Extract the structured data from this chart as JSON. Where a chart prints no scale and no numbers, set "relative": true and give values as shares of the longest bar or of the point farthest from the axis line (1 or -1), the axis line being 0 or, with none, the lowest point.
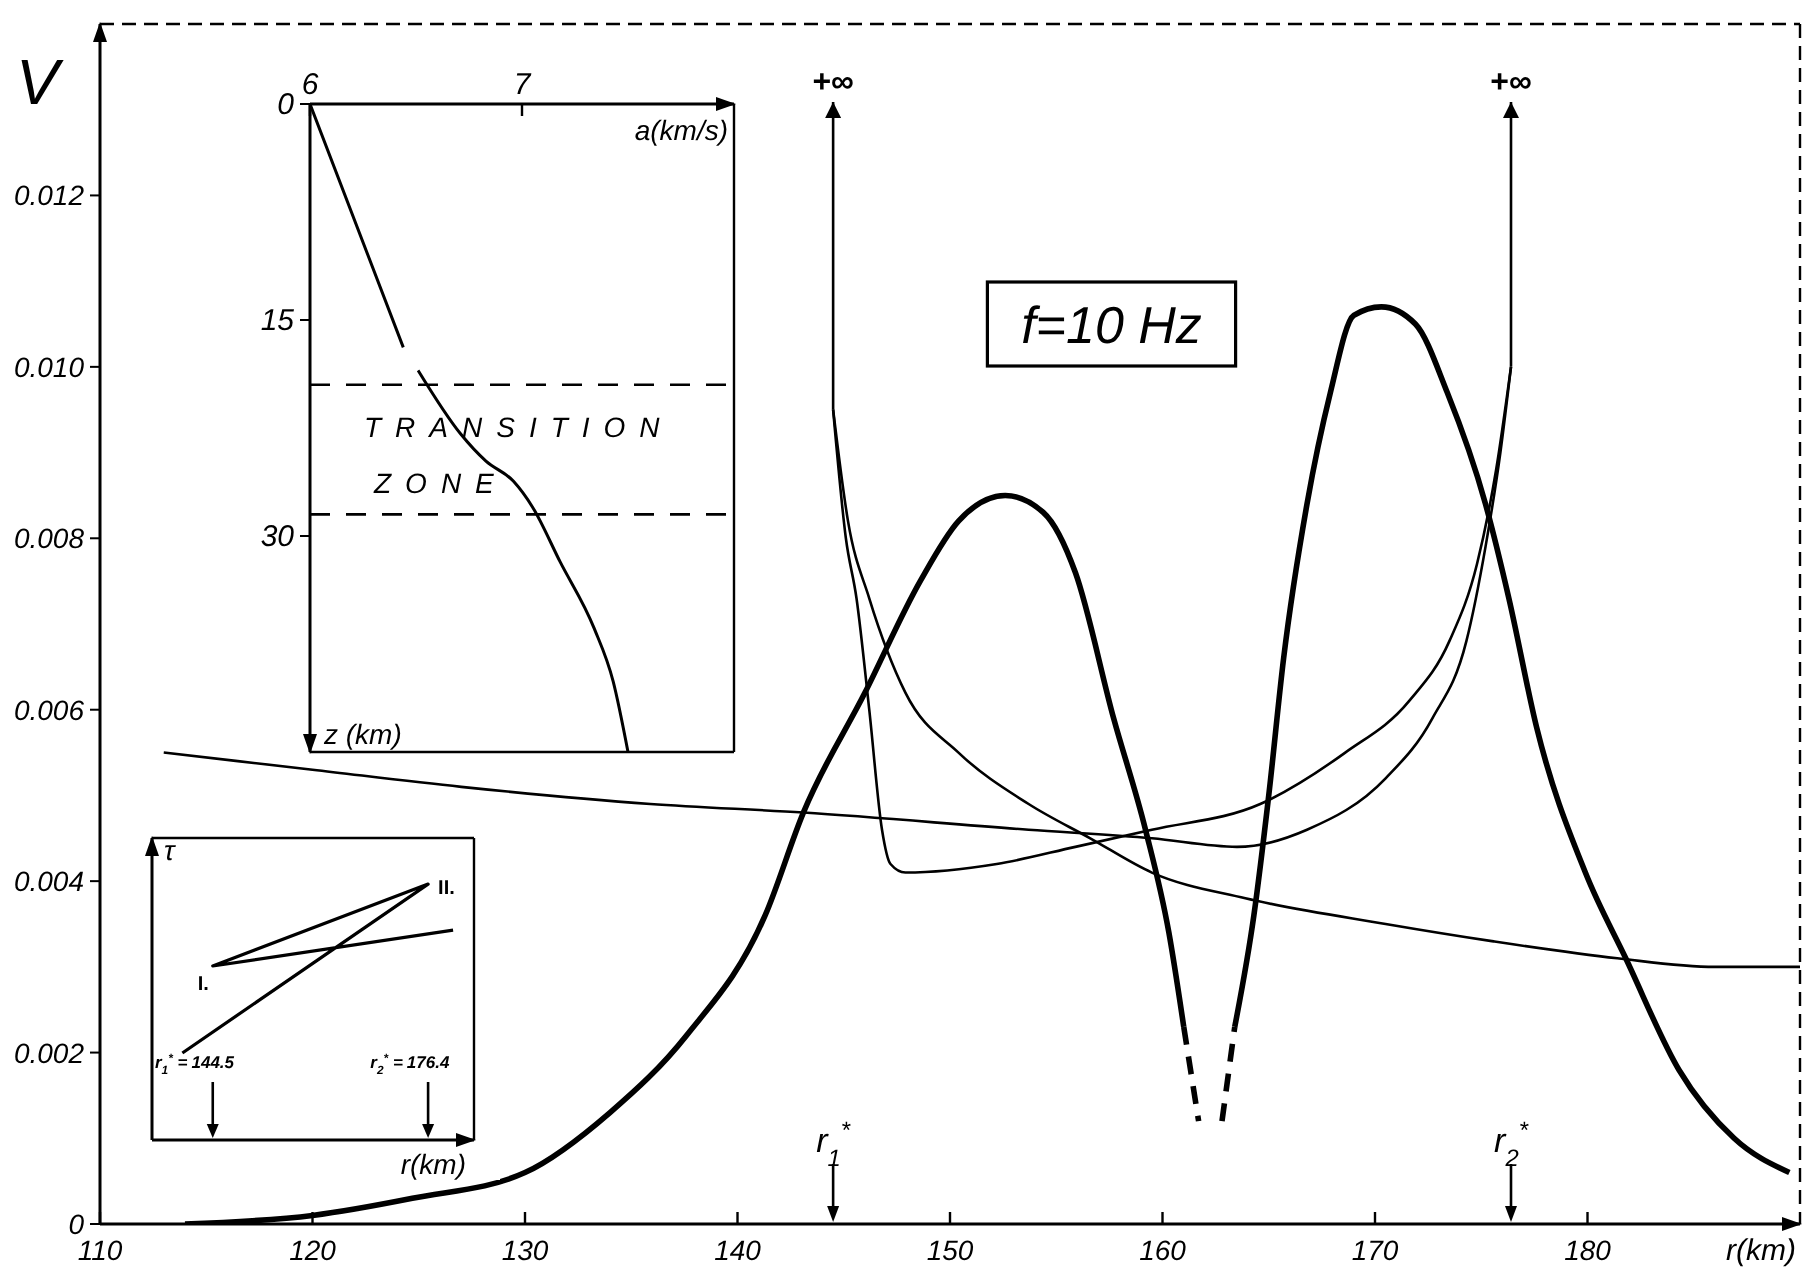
{
  "chart_data": [
    {
      "type": "line",
      "xlabel": "r(km)",
      "ylabel": "V",
      "xlim": [
        110,
        190
      ],
      "xticks": [
        110,
        120,
        130,
        140,
        150,
        160,
        170,
        180
      ],
      "ylim": [
        0,
        0.014
      ],
      "yticks": [
        0,
        0.002,
        0.004,
        0.006,
        0.008,
        {
          "value": 0.01,
          "label": "0.010"
        },
        0.012
      ],
      "series": [
        {
          "color": "#000000",
          "x": [
            114,
            120,
            124.7,
            130,
            134,
            137.6,
            141.3,
            143.1,
            146,
            148.6,
            150.4,
            152.6,
            154.4,
            155.9,
            157.7,
            159.2,
            160.3,
            161.0
          ],
          "values": [
            0,
            0.0001,
            0.0003,
            0.0006,
            0.0013,
            0.0022,
            0.0036,
            0.0048,
            0.0062,
            0.0075,
            0.0082,
            0.0085,
            0.0083,
            0.0076,
            0.0059,
            0.0046,
            0.0034,
            0.0023
          ]
        },
        {
          "color": "#000000",
          "line_style": "dashed",
          "x": [
            161.0,
            161.7
          ],
          "values": [
            0.0023,
            0.0012
          ]
        },
        {
          "color": "#000000",
          "line_style": "dashed",
          "x": [
            162.8,
            163.4
          ],
          "values": [
            0.0012,
            0.0023
          ]
        },
        {
          "color": "#000000",
          "x": [
            163.4,
            164.3,
            165.0,
            165.7,
            166.8,
            167.9,
            169.0,
            170.3,
            171.9,
            173.4,
            175.2,
            176.3,
            177.6,
            179.9,
            181.8,
            184.3,
            186.9,
            189.5
          ],
          "values": [
            0.0023,
            0.0036,
            0.005,
            0.0066,
            0.0084,
            0.0097,
            0.0106,
            0.0107,
            0.0105,
            0.0097,
            0.0084,
            0.0073,
            0.0058,
            0.0041,
            0.0031,
            0.0018,
            0.001,
            0.0006
          ]
        },
        {
          "color": "#000000",
          "x": [
            113,
            120,
            127,
            135.9,
            143.1,
            153.7,
            159.5,
            163.5,
            166.8,
            170.5,
            172.7,
            174.3,
            175.2,
            175.9,
            176.4
          ],
          "values": [
            0.0055,
            0.0053,
            0.0051,
            0.0049,
            0.0048,
            0.0046,
            0.0045,
            0.0044,
            0.0046,
            0.0052,
            0.0059,
            0.0068,
            0.0079,
            0.009,
            0.01
          ]
        },
        {
          "color": "#000000",
          "x": [
            144.5,
            145.1,
            145.6,
            146.2,
            146.8,
            147.2,
            147.9,
            152.2,
            155.9,
            159.5,
            164.6,
            168.6,
            171.6,
            173.5,
            174.8,
            175.7,
            176.4
          ],
          "values": [
            0.0095,
            0.008,
            0.0073,
            0.006,
            0.0046,
            0.0042,
            0.0041,
            0.0042,
            0.0044,
            0.0046,
            0.0049,
            0.0055,
            0.0061,
            0.0068,
            0.0077,
            0.0088,
            0.01
          ]
        },
        {
          "color": "#000000",
          "x": [
            144.5,
            145.2,
            146.2,
            147.9,
            150.4,
            153.7,
            156.6,
            159.5,
            163.9,
            170.5,
            175.5,
            181.4,
            186,
            190
          ],
          "values": [
            0.0095,
            0.0082,
            0.0073,
            0.0062,
            0.0055,
            0.0049,
            0.0045,
            0.0041,
            0.0038,
            0.0035,
            0.0033,
            0.0031,
            0.003,
            0.003
          ]
        }
      ],
      "ref_lines": [
        {
          "axis": "x",
          "value": 144.5,
          "label": "+∞"
        },
        {
          "axis": "x",
          "value": 176.4,
          "label": "+∞"
        }
      ],
      "annotations": [
        "f=10 Hz",
        "r$_{1}$$^{*}$",
        "r$_{2}$$^{*}$"
      ]
    },
    {
      "type": "line",
      "xlabel": "a(km/s)",
      "ylabel": "z (km)",
      "color": "#000000",
      "x": [
        6.0,
        6.44,
        6.475,
        6.51,
        6.71,
        6.83,
        6.96,
        7.05,
        7.18,
        7.34,
        7.43,
        7.5
      ],
      "values": [
        0,
        16.9,
        null,
        18.5,
        22.9,
        24.8,
        26.2,
        28.0,
        31.8,
        36.4,
        40.1,
        45
      ],
      "xlim": [
        6,
        8
      ],
      "xticks": [
        6,
        7
      ],
      "ylim": [
        45,
        0
      ],
      "yticks": [
        0,
        15,
        30
      ],
      "ref_lines": [
        {
          "axis": "y",
          "value": 19.5,
          "line_style": "dashed",
          "label": "TRANSITION ZONE"
        },
        {
          "axis": "y",
          "value": 28.5,
          "line_style": "dashed"
        }
      ]
    },
    {
      "type": "line",
      "relative": true,
      "xlabel": "r(km)",
      "ylabel": "τ",
      "color": "#000000",
      "x": [
        140.0,
        176.4,
        144.5,
        180.1
      ],
      "values": [
        0.34,
        1,
        0.68,
        0.82
      ],
      "xlim": [
        135.5,
        183.2
      ],
      "xticks": [
        144.5,
        176.4
      ],
      "annotations": [
        "r$_{1}$$^{*}$ =",
        "r$_{2}$$^{*}$ =",
        {
          "text": "I.",
          "x": 144.5,
          "y": 0.68
        },
        {
          "text": "II.",
          "x": 176.4,
          "y": 1
        }
      ]
    }
  ]
}
